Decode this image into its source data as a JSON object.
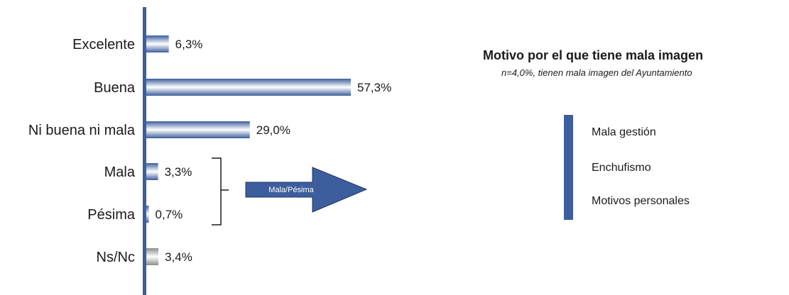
{
  "chart_data": {
    "type": "bar",
    "orientation": "horizontal",
    "categories": [
      "Excelente",
      "Buena",
      "Ni buena ni mala",
      "Mala",
      "Pésima",
      "Ns/Nc"
    ],
    "values": [
      6.3,
      57.3,
      29.0,
      3.3,
      0.7,
      3.4
    ],
    "value_labels": [
      "6,3%",
      "57,3%",
      "29,0%",
      "3,3%",
      "0,7%",
      "3,4%"
    ],
    "xlim": [
      0,
      60
    ],
    "grid": false,
    "annotation": "Mala/Pésima",
    "colors": {
      "axis": "#3d5e9c",
      "bar_dark": "#3d5e9c",
      "bar_light": "#ffffff",
      "nsnc_dark": "#8c8c8c"
    }
  },
  "side_panel": {
    "title": "Motivo por el que tiene mala imagen",
    "subtitle": "n=4,0%, tienen mala imagen del Ayuntamiento",
    "reasons": [
      "Mala gestión",
      "Enchufismo",
      "Motivos personales"
    ]
  }
}
